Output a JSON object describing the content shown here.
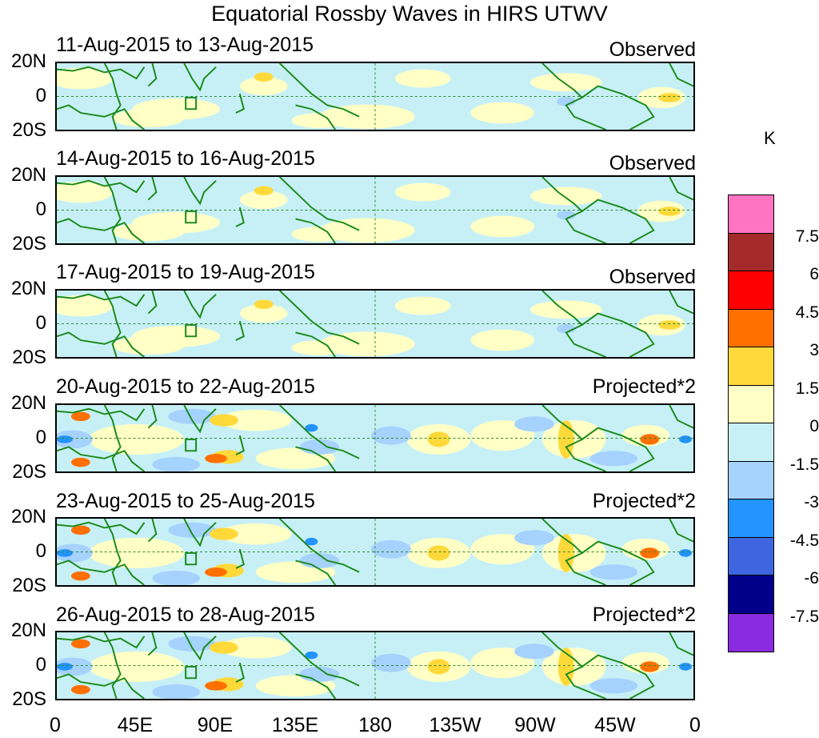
{
  "title": "Equatorial Rossby Waves in HIRS UTWV",
  "panels": [
    {
      "date": "11-Aug-2015 to 13-Aug-2015",
      "type": "Observed"
    },
    {
      "date": "14-Aug-2015 to 16-Aug-2015",
      "type": "Observed"
    },
    {
      "date": "17-Aug-2015 to 19-Aug-2015",
      "type": "Observed"
    },
    {
      "date": "20-Aug-2015 to 22-Aug-2015",
      "type": "Projected*2"
    },
    {
      "date": "23-Aug-2015 to 25-Aug-2015",
      "type": "Projected*2"
    },
    {
      "date": "26-Aug-2015 to 28-Aug-2015",
      "type": "Projected*2"
    }
  ],
  "lat_labels": [
    "20N",
    "0",
    "20S"
  ],
  "lon_labels": [
    "0",
    "45E",
    "90E",
    "135E",
    "180",
    "135W",
    "90W",
    "45W",
    "0"
  ],
  "colorbar": {
    "unit": "K",
    "labels": [
      "7.5",
      "6",
      "4.5",
      "3",
      "1.5",
      "0",
      "-1.5",
      "-3",
      "-4.5",
      "-6",
      "-7.5"
    ],
    "colors": [
      "#ff74c2",
      "#a52a2a",
      "#ff0000",
      "#ff7000",
      "#ffd93a",
      "#ffffc6",
      "#c7f0f6",
      "#a6d2ff",
      "#2293ff",
      "#3d66e0",
      "#00008b",
      "#8a2be2"
    ]
  }
}
